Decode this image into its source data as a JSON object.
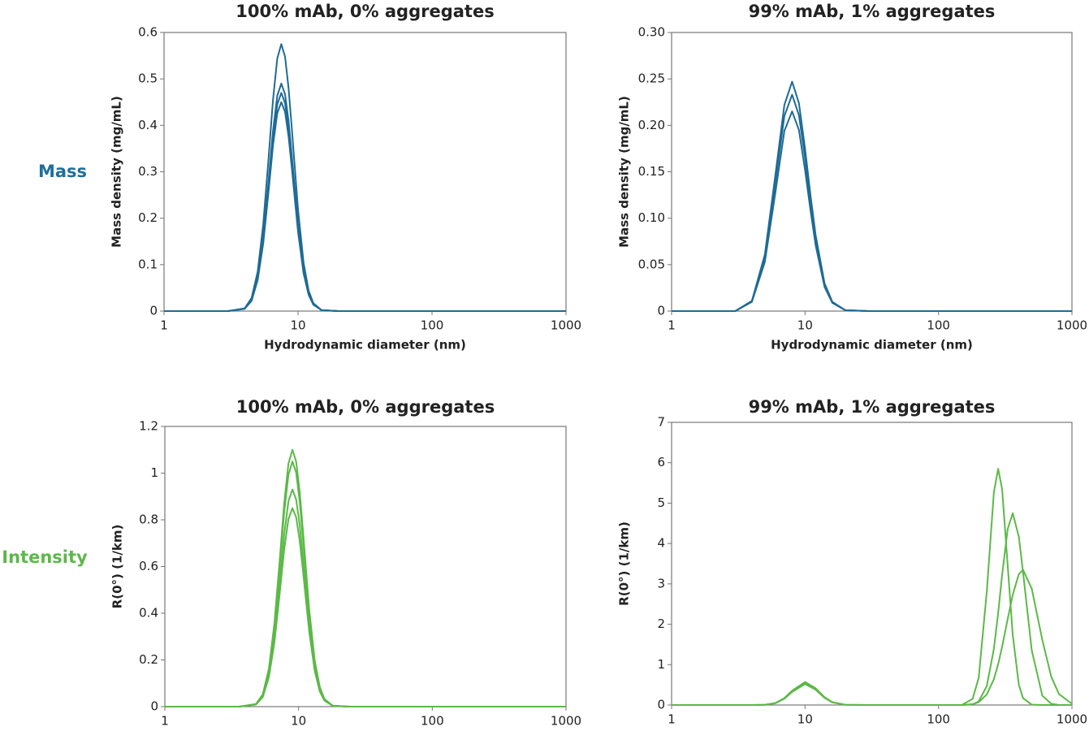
{
  "rows": [
    {
      "label": "Mass",
      "color": "#1f6f9a"
    },
    {
      "label": "Intensity",
      "color": "#5cb84a"
    }
  ],
  "chart_data": [
    {
      "type": "line",
      "title": "100% mAb, 0% aggregates",
      "x_label": "Hydrodynamic diameter (nm)",
      "y_label": "Mass density (mg/mL)",
      "xscale": "log",
      "xlim": [
        1,
        1000
      ],
      "xticks": [
        1,
        10,
        100,
        1000
      ],
      "ylim": [
        0,
        0.6
      ],
      "yticks": [
        0,
        0.1,
        0.2,
        0.3,
        0.4,
        0.5,
        0.6
      ],
      "grid": false,
      "x": [
        1,
        3,
        4,
        4.5,
        5,
        5.5,
        6,
        6.5,
        7,
        7.5,
        8,
        8.5,
        9,
        10,
        11,
        12,
        13,
        15,
        20,
        100,
        1000
      ],
      "series": [
        {
          "color": "#1f6b94",
          "values": [
            0,
            0,
            0.006,
            0.028,
            0.085,
            0.187,
            0.322,
            0.454,
            0.544,
            0.575,
            0.548,
            0.48,
            0.391,
            0.219,
            0.104,
            0.044,
            0.017,
            0.002,
            0,
            0,
            0
          ]
        },
        {
          "color": "#1f6b94",
          "values": [
            0,
            0,
            0.005,
            0.024,
            0.073,
            0.159,
            0.274,
            0.387,
            0.464,
            0.49,
            0.467,
            0.409,
            0.333,
            0.186,
            0.088,
            0.038,
            0.015,
            0.002,
            0,
            0,
            0
          ]
        },
        {
          "color": "#1f6b94",
          "values": [
            0,
            0,
            0.005,
            0.023,
            0.07,
            0.153,
            0.263,
            0.371,
            0.445,
            0.47,
            0.448,
            0.392,
            0.32,
            0.179,
            0.085,
            0.036,
            0.014,
            0.002,
            0,
            0,
            0
          ]
        },
        {
          "color": "#1f6b94",
          "values": [
            0,
            0,
            0.005,
            0.022,
            0.067,
            0.146,
            0.252,
            0.356,
            0.426,
            0.45,
            0.429,
            0.376,
            0.306,
            0.171,
            0.081,
            0.035,
            0.014,
            0.002,
            0,
            0,
            0
          ]
        }
      ]
    },
    {
      "type": "line",
      "title": "99% mAb, 1% aggregates",
      "x_label": "Hydrodynamic diameter (nm)",
      "y_label": "Mass density (mg/mL)",
      "xscale": "log",
      "xlim": [
        1,
        1000
      ],
      "xticks": [
        1,
        10,
        100,
        1000
      ],
      "ylim": [
        0,
        0.3
      ],
      "yticks": [
        0,
        0.05,
        {
          "value": 0.1,
          "label": "0.10"
        },
        0.15,
        {
          "value": 0.2,
          "label": "0.20"
        },
        0.25,
        {
          "value": 0.3,
          "label": "0.30"
        }
      ],
      "grid": false,
      "x": [
        1,
        2,
        3,
        4,
        5,
        6,
        7,
        8,
        9,
        10,
        11,
        12,
        14,
        16,
        20,
        30,
        100,
        1000
      ],
      "series": [
        {
          "color": "#1f6b94",
          "values": [
            0,
            0,
            0,
            0.011,
            0.061,
            0.147,
            0.222,
            0.247,
            0.224,
            0.175,
            0.124,
            0.082,
            0.03,
            0.01,
            0.001,
            0,
            0,
            0
          ]
        },
        {
          "color": "#1f6b94",
          "values": [
            0,
            0,
            0,
            0.011,
            0.057,
            0.139,
            0.21,
            0.233,
            0.211,
            0.165,
            0.117,
            0.077,
            0.028,
            0.009,
            0.001,
            0,
            0,
            0
          ]
        },
        {
          "color": "#1f6b94",
          "values": [
            0,
            0,
            0,
            0.01,
            0.053,
            0.128,
            0.194,
            0.215,
            0.195,
            0.152,
            0.108,
            0.071,
            0.026,
            0.009,
            0.001,
            0,
            0,
            0
          ]
        }
      ]
    },
    {
      "type": "line",
      "title": "100% mAb, 0% aggregates",
      "y_label": "R(0°) (1/km)",
      "xscale": "log",
      "xlim": [
        1,
        1000
      ],
      "xticks": [
        1,
        10,
        100,
        1000
      ],
      "ylim": [
        0,
        1.2
      ],
      "yticks": [
        0,
        0.2,
        0.4,
        0.6,
        0.8,
        1,
        1.2
      ],
      "grid": false,
      "x": [
        1,
        3.6,
        4.8,
        5.4,
        6,
        6.6,
        7.2,
        7.8,
        8.4,
        9,
        9.6,
        10.2,
        10.8,
        12,
        13.2,
        14.4,
        15.6,
        18,
        24,
        100,
        1000
      ],
      "series": [
        {
          "color": "#5bb947",
          "values": [
            0,
            0,
            0.011,
            0.053,
            0.163,
            0.358,
            0.616,
            0.869,
            1.041,
            1.1,
            1.048,
            0.919,
            0.748,
            0.418,
            0.198,
            0.085,
            0.033,
            0.004,
            0,
            0,
            0
          ]
        },
        {
          "color": "#5bb947",
          "values": [
            0,
            0,
            0.011,
            0.05,
            0.155,
            0.341,
            0.588,
            0.83,
            0.993,
            1.05,
            1.001,
            0.877,
            0.714,
            0.399,
            0.189,
            0.081,
            0.032,
            0.004,
            0,
            0,
            0
          ]
        },
        {
          "color": "#5bb947",
          "values": [
            0,
            0,
            0.009,
            0.045,
            0.138,
            0.302,
            0.521,
            0.735,
            0.88,
            0.93,
            0.886,
            0.777,
            0.632,
            0.353,
            0.167,
            0.072,
            0.028,
            0.004,
            0,
            0,
            0
          ]
        },
        {
          "color": "#5bb947",
          "values": [
            0,
            0,
            0.009,
            0.041,
            0.126,
            0.276,
            0.476,
            0.672,
            0.804,
            0.85,
            0.81,
            0.71,
            0.578,
            0.323,
            0.153,
            0.065,
            0.026,
            0.003,
            0,
            0,
            0
          ]
        }
      ]
    },
    {
      "type": "line",
      "title": "99% mAb, 1% aggregates",
      "y_label": "R(0°) (1/km)",
      "xscale": "log",
      "xlim": [
        1,
        1000
      ],
      "xticks": [
        1,
        10,
        100,
        1000
      ],
      "ylim": [
        0,
        7
      ],
      "yticks": [
        0,
        1,
        2,
        3,
        4,
        5,
        6,
        7
      ],
      "grid": false,
      "x": [
        1,
        4,
        5,
        6,
        7,
        8,
        10,
        12,
        14,
        16,
        20,
        30,
        100,
        150,
        180,
        200,
        230,
        260,
        280,
        300,
        330,
        360,
        400,
        430,
        500,
        600,
        700,
        800,
        1000
      ],
      "series": [
        {
          "color": "#5bb947",
          "values": [
            0,
            0,
            0.006,
            0.047,
            0.165,
            0.344,
            0.55,
            0.402,
            0.187,
            0.069,
            0.006,
            0,
            0,
            0.003,
            0.15,
            0.67,
            2.8,
            5.27,
            5.85,
            5.34,
            3.45,
            1.74,
            0.5,
            0.17,
            0.009,
            0,
            0,
            0,
            0
          ]
        },
        {
          "color": "#5bb947",
          "values": [
            0,
            0,
            0.006,
            0.048,
            0.171,
            0.356,
            0.57,
            0.416,
            0.194,
            0.071,
            0.006,
            0,
            0,
            0,
            0.018,
            0.087,
            0.47,
            1.39,
            2.28,
            3.23,
            4.36,
            4.75,
            4.17,
            3.29,
            1.35,
            0.23,
            0.03,
            0,
            0
          ]
        },
        {
          "color": "#5bb947",
          "values": [
            0,
            0,
            0.006,
            0.044,
            0.156,
            0.325,
            0.52,
            0.38,
            0.177,
            0.065,
            0.006,
            0,
            0,
            0,
            0.02,
            0.07,
            0.26,
            0.64,
            1.01,
            1.45,
            2.13,
            2.73,
            3.24,
            3.35,
            2.88,
            1.61,
            0.7,
            0.27,
            0.03
          ]
        }
      ]
    }
  ]
}
